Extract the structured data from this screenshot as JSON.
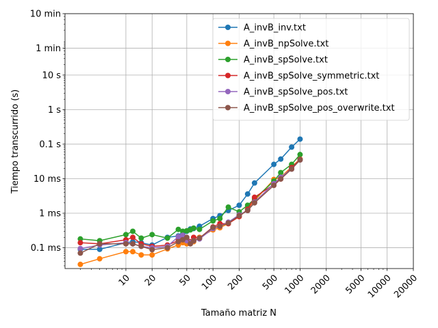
{
  "chart_data": {
    "type": "line",
    "title": "",
    "xlabel": "Tamaño matriz N",
    "ylabel": "Tiempo transcurrido (s)",
    "x_scale": "log",
    "y_scale": "log",
    "xlim": [
      2,
      20000
    ],
    "ylim": [
      2.5e-05,
      600
    ],
    "grid": true,
    "legend_position": "top-right",
    "x_ticks": [
      10,
      20,
      50,
      100,
      200,
      500,
      1000,
      2000,
      5000,
      10000,
      20000
    ],
    "x_tick_labels": [
      "10",
      "20",
      "50",
      "100",
      "200",
      "500",
      "1000",
      "2000",
      "5000",
      "10000",
      "20000"
    ],
    "y_ticks": [
      0.0001,
      0.001,
      0.01,
      0.1,
      1,
      10,
      60,
      600
    ],
    "y_tick_labels": [
      "0.1 ms",
      "1 ms",
      "10 ms",
      "0.1 s",
      "1 s",
      "10 s",
      "1 min",
      "10 min"
    ],
    "series": [
      {
        "name": "A_invB_inv.txt",
        "color": "#1f77b4",
        "x": [
          3,
          5,
          10,
          12,
          15,
          20,
          30,
          40,
          45,
          50,
          55,
          60,
          70,
          100,
          120,
          150,
          200,
          250,
          300,
          500,
          600,
          800,
          1000
        ],
        "y": [
          9e-05,
          9e-05,
          0.00014,
          0.00015,
          0.00014,
          0.00012,
          0.0002,
          0.00022,
          0.00025,
          0.0003,
          0.00035,
          0.00036,
          0.00042,
          0.0007,
          0.00085,
          0.0012,
          0.0017,
          0.0036,
          0.0075,
          0.026,
          0.037,
          0.082,
          0.14
        ]
      },
      {
        "name": "A_invB_npSolve.txt",
        "color": "#ff7f0e",
        "x": [
          3,
          5,
          10,
          12,
          15,
          20,
          30,
          40,
          45,
          50,
          55,
          60,
          70,
          100,
          120,
          150,
          200,
          250,
          300,
          500,
          600,
          800,
          1000
        ],
        "y": [
          3.3e-05,
          4.8e-05,
          7.7e-05,
          7.7e-05,
          6.2e-05,
          6.2e-05,
          9.3e-05,
          0.00012,
          0.00014,
          0.00013,
          0.00014,
          0.00015,
          0.0002,
          0.00033,
          0.00038,
          0.0005,
          0.0008,
          0.0013,
          0.0023,
          0.0095,
          0.011,
          0.022,
          0.037
        ]
      },
      {
        "name": "A_invB_spSolve.txt",
        "color": "#2ca02c",
        "x": [
          3,
          5,
          10,
          12,
          15,
          20,
          30,
          40,
          45,
          50,
          55,
          60,
          70,
          100,
          120,
          150,
          200,
          250,
          300,
          500,
          600,
          800,
          1000
        ],
        "y": [
          0.00018,
          0.00016,
          0.00024,
          0.0003,
          0.00019,
          0.00024,
          0.00019,
          0.00034,
          0.0003,
          0.00031,
          0.00033,
          0.00037,
          0.00034,
          0.0006,
          0.0007,
          0.0015,
          0.0011,
          0.0017,
          0.0026,
          0.0085,
          0.015,
          0.026,
          0.05
        ]
      },
      {
        "name": "A_invB_spSolve_symmetric.txt",
        "color": "#d62728",
        "x": [
          3,
          5,
          10,
          12,
          15,
          20,
          30,
          40,
          45,
          50,
          55,
          60,
          70,
          100,
          120,
          150,
          200,
          250,
          300,
          500,
          600,
          800,
          1000
        ],
        "y": [
          0.00014,
          0.00013,
          0.00017,
          0.0002,
          0.00013,
          0.00011,
          0.00012,
          0.00016,
          0.00018,
          0.00018,
          0.00015,
          0.0002,
          0.00019,
          0.0004,
          0.0005,
          0.0005,
          0.0008,
          0.0013,
          0.0029,
          0.0068,
          0.0098,
          0.021,
          0.036
        ]
      },
      {
        "name": "A_invB_spSolve_pos.txt",
        "color": "#9467bd",
        "x": [
          3,
          5,
          10,
          12,
          15,
          20,
          30,
          40,
          45,
          50,
          55,
          60,
          70,
          100,
          120,
          150,
          200,
          250,
          300,
          500,
          600,
          800,
          1000
        ],
        "y": [
          9.5e-05,
          0.00012,
          0.00014,
          0.00013,
          0.00011,
          0.0001,
          0.00011,
          0.00021,
          0.00023,
          0.00016,
          0.00014,
          0.00016,
          0.00018,
          0.00036,
          0.00042,
          0.00055,
          0.0009,
          0.0012,
          0.0021,
          0.0072,
          0.011,
          0.019,
          0.035
        ]
      },
      {
        "name": "A_invB_spSolve_pos_overwrite.txt",
        "color": "#8c564b",
        "x": [
          3,
          5,
          10,
          12,
          15,
          20,
          30,
          40,
          45,
          50,
          55,
          60,
          70,
          100,
          120,
          150,
          200,
          250,
          300,
          500,
          600,
          800,
          1000
        ],
        "y": [
          7e-05,
          0.00013,
          0.00013,
          0.00013,
          0.00011,
          8.8e-05,
          0.0001,
          0.00015,
          0.00017,
          0.0002,
          0.00013,
          0.00016,
          0.00019,
          0.00039,
          0.00042,
          0.00052,
          0.00085,
          0.0012,
          0.002,
          0.0064,
          0.0098,
          0.019,
          0.035
        ]
      }
    ]
  }
}
